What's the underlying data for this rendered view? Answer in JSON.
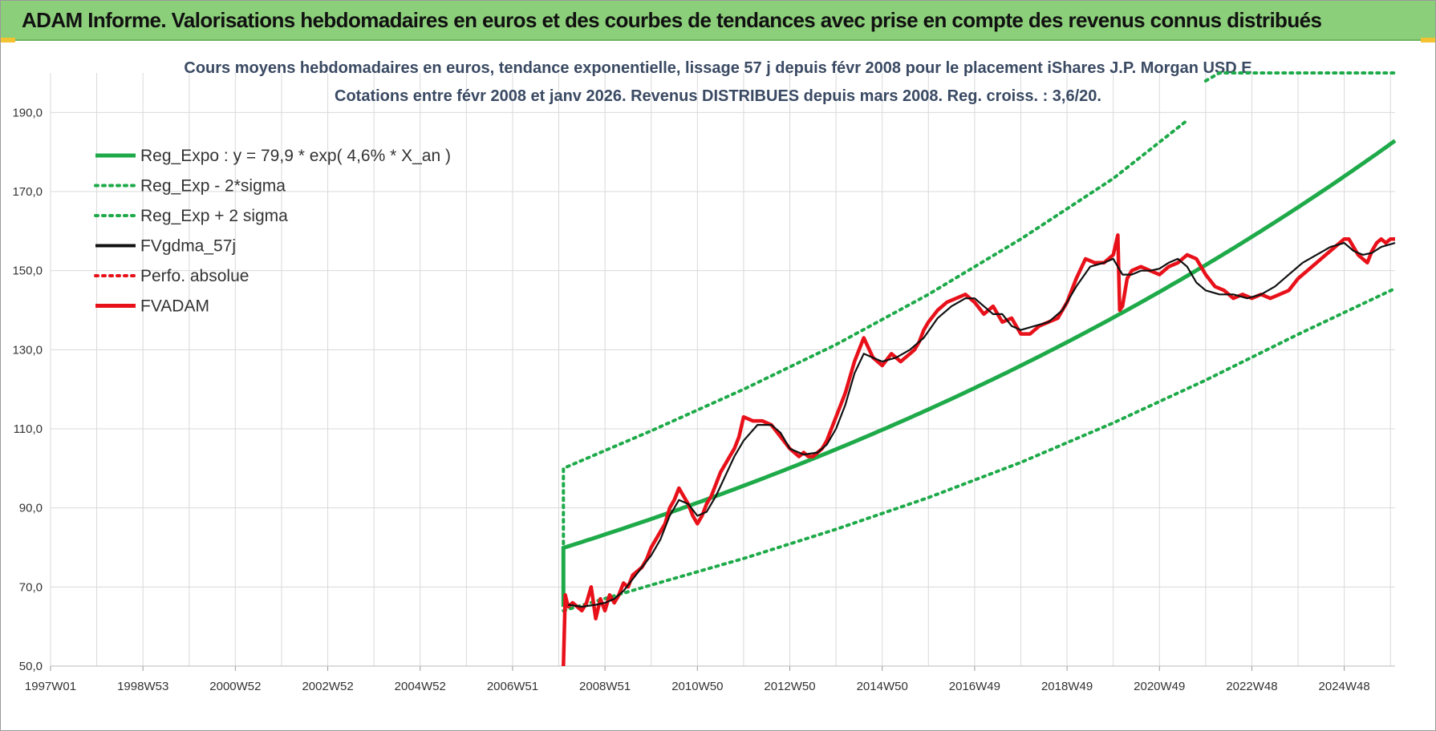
{
  "header": {
    "title": "ADAM Informe. Valorisations hebdomadaires en euros et des courbes de tendances avec prise en compte des revenus connus distribués"
  },
  "colors": {
    "banner": "#8ccf7a",
    "trend": "#1faa4a",
    "band": "#1faa4a",
    "smooth": "#111111",
    "price": "#e8111a",
    "grid": "#d9d9d9"
  },
  "chart_data": {
    "type": "line",
    "title_lines": [
      "Cours moyens hebdomadaires en euros, tendance exponentielle, lissage 57 j depuis févr 2008 pour le placement iShares J.P. Morgan USD E",
      "Cotations entre févr 2008 et janv 2026. Revenus DISTRIBUES depuis mars 2008. Reg. croiss. : 3,6/20."
    ],
    "x_tick_labels": [
      "1997W01",
      "1998W53",
      "2000W52",
      "2002W52",
      "2004W52",
      "2006W51",
      "2008W51",
      "2010W50",
      "2012W50",
      "2014W50",
      "2016W49",
      "2018W49",
      "2020W49",
      "2022W48",
      "2024W48"
    ],
    "x_tick_years": [
      1997.0,
      1999.0,
      2001.0,
      2003.0,
      2005.0,
      2007.0,
      2009.0,
      2011.0,
      2013.0,
      2015.0,
      2017.0,
      2019.0,
      2021.0,
      2023.0,
      2025.0
    ],
    "xlim": [
      1997.0,
      2026.1
    ],
    "y_ticks": [
      "50,0",
      "70,0",
      "90,0",
      "110,0",
      "130,0",
      "150,0",
      "170,0",
      "190,0"
    ],
    "y_tick_values": [
      50,
      70,
      90,
      110,
      130,
      150,
      170,
      190
    ],
    "ylim": [
      50,
      200
    ],
    "grid": true,
    "legend_position": "top-left",
    "legend": [
      {
        "label": "Reg_Expo : y = 79,9 * exp( 4,6% *  X_an )",
        "style": "solid-thick",
        "color": "#1faa4a"
      },
      {
        "label": "Reg_Exp - 2*sigma",
        "style": "dotted",
        "color": "#1faa4a"
      },
      {
        "label": "Reg_Exp + 2 sigma",
        "style": "dotted",
        "color": "#1faa4a"
      },
      {
        "label": "FVgdma_57j",
        "style": "solid",
        "color": "#111111"
      },
      {
        "label": "Perfo. absolue",
        "style": "dotted",
        "color": "#e8111a"
      },
      {
        "label": "FVADAM",
        "style": "solid-thick",
        "color": "#e8111a"
      }
    ],
    "regression": {
      "a": 79.9,
      "rate": 0.046,
      "start": 2008.1,
      "end": 2026.1
    },
    "band": {
      "lower_x": [
        2008.1,
        2010,
        2012,
        2014,
        2016,
        2018,
        2020,
        2022,
        2024,
        2026.1
      ],
      "lower_y": [
        64.0,
        70.5,
        77.2,
        84.6,
        92.6,
        101.5,
        111.5,
        122.3,
        133.9,
        145.5
      ],
      "upper_x": [
        2008.1,
        2010,
        2012,
        2014,
        2016,
        2018,
        2020,
        2021.6
      ],
      "upper_y": [
        100.0,
        109.5,
        120.0,
        131.3,
        144.0,
        158.0,
        173.3,
        188.0
      ],
      "upper_clip_x": [
        2022.0,
        2022.3,
        2026.1
      ],
      "upper_clip_y": [
        198,
        200,
        200
      ]
    },
    "series": [
      {
        "name": "FVADAM",
        "x": [
          2008.1,
          2008.14,
          2008.2,
          2008.3,
          2008.4,
          2008.5,
          2008.6,
          2008.7,
          2008.8,
          2008.9,
          2009.0,
          2009.1,
          2009.2,
          2009.3,
          2009.4,
          2009.5,
          2009.6,
          2009.7,
          2009.8,
          2009.9,
          2010.0,
          2010.1,
          2010.2,
          2010.3,
          2010.4,
          2010.5,
          2010.6,
          2010.7,
          2010.8,
          2010.9,
          2011.0,
          2011.1,
          2011.2,
          2011.3,
          2011.4,
          2011.5,
          2011.6,
          2011.7,
          2011.8,
          2011.9,
          2012.0,
          2012.2,
          2012.4,
          2012.6,
          2012.8,
          2013.0,
          2013.2,
          2013.3,
          2013.4,
          2013.5,
          2013.6,
          2013.7,
          2013.8,
          2014.0,
          2014.2,
          2014.4,
          2014.6,
          2014.8,
          2015.0,
          2015.2,
          2015.4,
          2015.5,
          2015.6,
          2015.7,
          2015.8,
          2015.9,
          2016.0,
          2016.2,
          2016.4,
          2016.6,
          2016.8,
          2017.0,
          2017.2,
          2017.4,
          2017.6,
          2017.8,
          2018.0,
          2018.2,
          2018.4,
          2018.6,
          2018.8,
          2019.0,
          2019.2,
          2019.4,
          2019.6,
          2019.8,
          2020.0,
          2020.1,
          2020.14,
          2020.2,
          2020.3,
          2020.4,
          2020.6,
          2020.8,
          2021.0,
          2021.2,
          2021.4,
          2021.6,
          2021.8,
          2022.0,
          2022.2,
          2022.4,
          2022.6,
          2022.8,
          2023.0,
          2023.2,
          2023.4,
          2023.6,
          2023.8,
          2024.0,
          2024.2,
          2024.4,
          2024.6,
          2024.8,
          2025.0,
          2025.1,
          2025.2,
          2025.3,
          2025.4,
          2025.5,
          2025.6,
          2025.7,
          2025.8,
          2025.9,
          2026.0,
          2026.1
        ],
        "y": [
          50,
          68,
          65,
          66,
          65,
          64,
          66,
          70,
          62,
          67,
          64,
          68,
          66,
          68,
          71,
          70,
          73,
          74,
          75,
          77,
          80,
          82,
          84,
          86,
          90,
          92,
          95,
          93,
          91,
          88,
          86,
          88,
          91,
          93,
          96,
          99,
          101,
          103,
          105,
          108,
          113,
          112,
          112,
          111,
          108,
          105,
          103,
          104,
          103,
          103,
          104,
          105,
          107,
          113,
          119,
          127,
          133,
          128,
          126,
          129,
          127,
          128,
          129,
          130,
          132,
          135,
          137,
          140,
          142,
          143,
          144,
          142,
          139,
          141,
          137,
          138,
          134,
          134,
          136,
          137,
          138,
          142,
          148,
          153,
          152,
          152,
          154,
          159,
          140,
          141,
          148,
          150,
          151,
          150,
          149,
          151,
          152,
          154,
          153,
          149,
          146,
          145,
          143,
          144,
          143,
          144,
          143,
          144,
          145,
          148,
          150,
          152,
          154,
          156,
          158,
          158,
          156,
          154,
          153,
          152,
          155,
          157,
          158,
          157,
          158,
          158
        ],
        "color": "#e8111a"
      },
      {
        "name": "FVgdma_57j",
        "x": [
          2008.2,
          2008.5,
          2008.8,
          2009.0,
          2009.2,
          2009.4,
          2009.6,
          2009.8,
          2010.0,
          2010.2,
          2010.4,
          2010.6,
          2010.8,
          2011.0,
          2011.2,
          2011.4,
          2011.6,
          2011.8,
          2012.0,
          2012.3,
          2012.6,
          2012.8,
          2013.0,
          2013.3,
          2013.6,
          2013.8,
          2014.0,
          2014.2,
          2014.4,
          2014.6,
          2014.8,
          2015.0,
          2015.3,
          2015.6,
          2015.9,
          2016.2,
          2016.5,
          2016.8,
          2017.0,
          2017.2,
          2017.4,
          2017.6,
          2017.8,
          2018.0,
          2018.3,
          2018.6,
          2018.9,
          2019.2,
          2019.5,
          2019.8,
          2020.0,
          2020.2,
          2020.4,
          2020.6,
          2020.8,
          2021.0,
          2021.2,
          2021.4,
          2021.6,
          2021.8,
          2022.0,
          2022.3,
          2022.6,
          2022.9,
          2023.2,
          2023.5,
          2023.8,
          2024.1,
          2024.4,
          2024.7,
          2025.0,
          2025.2,
          2025.4,
          2025.6,
          2025.8,
          2026.1
        ],
        "y": [
          65.5,
          65.0,
          65.5,
          66.0,
          67.0,
          69.0,
          72.0,
          75.0,
          78.0,
          82.0,
          88.0,
          92.0,
          91.0,
          88.0,
          89.0,
          93.0,
          98.0,
          103.0,
          107.0,
          111.0,
          111.0,
          109.0,
          105.0,
          103.5,
          104.0,
          106.0,
          110.0,
          116.0,
          124.0,
          129.0,
          128.0,
          127.0,
          128.0,
          130.0,
          133.0,
          138.0,
          141.0,
          143.0,
          143.0,
          141.0,
          139.0,
          139.0,
          136.0,
          135.0,
          136.0,
          137.0,
          140.0,
          146.0,
          151.0,
          152.0,
          153.0,
          149.0,
          149.0,
          150.0,
          150.0,
          150.5,
          152.0,
          153.0,
          151.0,
          147.0,
          145.0,
          144.0,
          144.0,
          143.0,
          144.0,
          146.0,
          149.0,
          152.0,
          154.0,
          156.0,
          157.0,
          155.0,
          154.0,
          154.5,
          156.0,
          157.0
        ],
        "color": "#111111"
      }
    ]
  }
}
